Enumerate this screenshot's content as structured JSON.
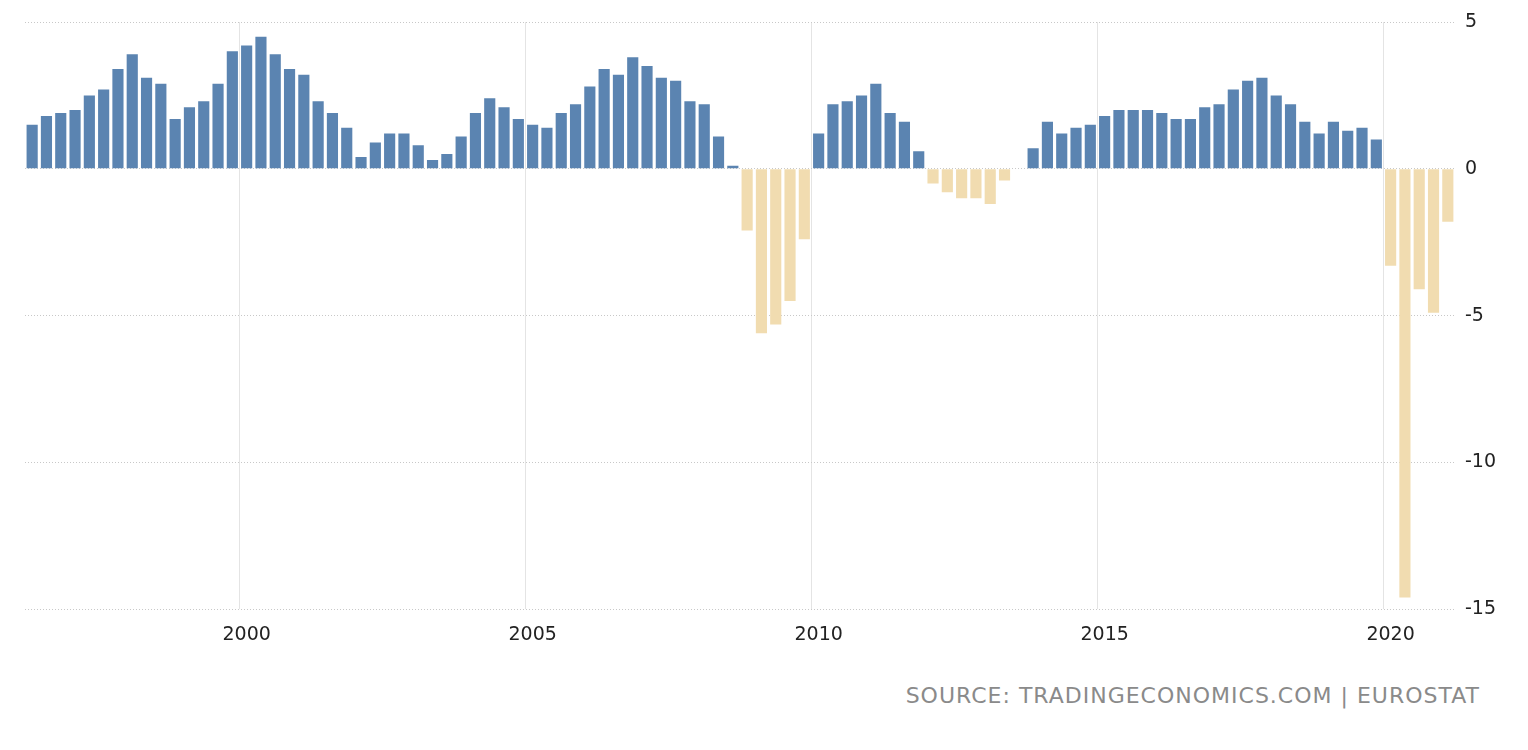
{
  "chart_data": {
    "type": "bar",
    "source": "SOURCE: TRADINGECONOMICS.COM | EUROSTAT",
    "categories": [
      null,
      null,
      null,
      null,
      null,
      null,
      null,
      null,
      null,
      null,
      null,
      null,
      null,
      null,
      null,
      "2000",
      null,
      null,
      null,
      null,
      null,
      null,
      null,
      null,
      null,
      null,
      null,
      null,
      null,
      null,
      null,
      null,
      null,
      null,
      null,
      "2005",
      null,
      null,
      null,
      null,
      null,
      null,
      null,
      null,
      null,
      null,
      null,
      null,
      null,
      null,
      null,
      null,
      null,
      null,
      null,
      "2010",
      null,
      null,
      null,
      null,
      null,
      null,
      null,
      null,
      null,
      null,
      null,
      null,
      null,
      null,
      null,
      null,
      null,
      null,
      null,
      "2015",
      null,
      null,
      null,
      null,
      null,
      null,
      null,
      null,
      null,
      null,
      null,
      null,
      null,
      null,
      null,
      null,
      null,
      null,
      null,
      "2020",
      null,
      null,
      null,
      null
    ],
    "values": [
      1.5,
      1.8,
      1.9,
      2.0,
      2.5,
      2.7,
      3.4,
      3.9,
      3.1,
      2.9,
      1.7,
      2.1,
      2.3,
      2.9,
      4.0,
      4.2,
      4.5,
      3.9,
      3.4,
      3.2,
      2.3,
      1.9,
      1.4,
      0.4,
      0.9,
      1.2,
      1.2,
      0.8,
      0.3,
      0.5,
      1.1,
      1.9,
      2.4,
      2.1,
      1.7,
      1.5,
      1.4,
      1.9,
      2.2,
      2.8,
      3.4,
      3.2,
      3.8,
      3.5,
      3.1,
      3.0,
      2.3,
      2.2,
      1.1,
      0.1,
      -2.1,
      -5.6,
      -5.3,
      -4.5,
      -2.4,
      1.2,
      2.2,
      2.3,
      2.5,
      2.9,
      1.9,
      1.6,
      0.6,
      -0.5,
      -0.8,
      -1.0,
      -1.0,
      -1.2,
      -0.4,
      0,
      0.7,
      1.6,
      1.2,
      1.4,
      1.5,
      1.8,
      2.0,
      2.0,
      2.0,
      1.9,
      1.7,
      1.7,
      2.1,
      2.2,
      2.7,
      3.0,
      3.1,
      2.5,
      2.2,
      1.6,
      1.2,
      1.6,
      1.3,
      1.4,
      1.0,
      -3.3,
      -14.6,
      -4.1,
      -4.9,
      -1.8
    ],
    "colors": [
      "#5b84b1",
      "#5b84b1",
      "#5b84b1",
      "#5b84b1",
      "#5b84b1",
      "#5b84b1",
      "#5b84b1",
      "#5b84b1",
      "#5b84b1",
      "#5b84b1",
      "#5b84b1",
      "#5b84b1",
      "#5b84b1",
      "#5b84b1",
      "#5b84b1",
      "#5b84b1",
      "#5b84b1",
      "#5b84b1",
      "#5b84b1",
      "#5b84b1",
      "#5b84b1",
      "#5b84b1",
      "#5b84b1",
      "#5b84b1",
      "#5b84b1",
      "#5b84b1",
      "#5b84b1",
      "#5b84b1",
      "#5b84b1",
      "#5b84b1",
      "#5b84b1",
      "#5b84b1",
      "#5b84b1",
      "#5b84b1",
      "#5b84b1",
      "#5b84b1",
      "#5b84b1",
      "#5b84b1",
      "#5b84b1",
      "#5b84b1",
      "#5b84b1",
      "#5b84b1",
      "#5b84b1",
      "#5b84b1",
      "#5b84b1",
      "#5b84b1",
      "#5b84b1",
      "#5b84b1",
      "#5b84b1",
      "#5b84b1",
      "#f1dcb0",
      "#f1dcb0",
      "#f1dcb0",
      "#f1dcb0",
      "#f1dcb0",
      "#5b84b1",
      "#5b84b1",
      "#5b84b1",
      "#5b84b1",
      "#5b84b1",
      "#5b84b1",
      "#5b84b1",
      "#5b84b1",
      "#f1dcb0",
      "#f1dcb0",
      "#f1dcb0",
      "#f1dcb0",
      "#f1dcb0",
      "#f1dcb0",
      "#5b84b1",
      "#5b84b1",
      "#5b84b1",
      "#5b84b1",
      "#5b84b1",
      "#5b84b1",
      "#5b84b1",
      "#5b84b1",
      "#5b84b1",
      "#5b84b1",
      "#5b84b1",
      "#5b84b1",
      "#5b84b1",
      "#5b84b1",
      "#5b84b1",
      "#5b84b1",
      "#5b84b1",
      "#5b84b1",
      "#5b84b1",
      "#5b84b1",
      "#5b84b1",
      "#5b84b1",
      "#5b84b1",
      "#5b84b1",
      "#5b84b1",
      "#5b84b1",
      "#f1dcb0",
      "#f1dcb0",
      "#f1dcb0",
      "#f1dcb0",
      "#f1dcb0"
    ],
    "ylim": [
      -15,
      5
    ],
    "yticks": [
      -15,
      -10,
      -5,
      0,
      5
    ],
    "grid": true
  }
}
